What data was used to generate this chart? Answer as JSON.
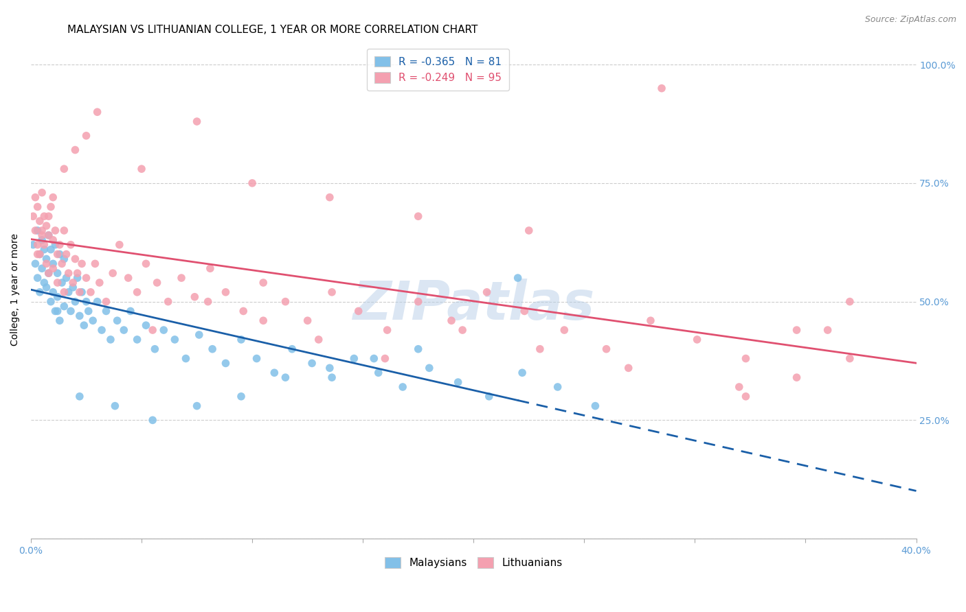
{
  "title": "MALAYSIAN VS LITHUANIAN COLLEGE, 1 YEAR OR MORE CORRELATION CHART",
  "source": "Source: ZipAtlas.com",
  "ylabel": "College, 1 year or more",
  "xlim": [
    0.0,
    0.4
  ],
  "ylim": [
    0.0,
    1.05
  ],
  "x_ticks": [
    0.0,
    0.05,
    0.1,
    0.15,
    0.2,
    0.25,
    0.3,
    0.35,
    0.4
  ],
  "x_tick_labels": [
    "0.0%",
    "",
    "",
    "",
    "",
    "",
    "",
    "",
    "40.0%"
  ],
  "y_ticks": [
    0.0,
    0.25,
    0.5,
    0.75,
    1.0
  ],
  "y_tick_labels": [
    "",
    "25.0%",
    "50.0%",
    "75.0%",
    "100.0%"
  ],
  "malaysian_R": -0.365,
  "malaysian_N": 81,
  "lithuanian_R": -0.249,
  "lithuanian_N": 95,
  "malaysian_color": "#82c0e8",
  "lithuanian_color": "#f4a0b0",
  "malaysian_line_color": "#1a5fa8",
  "lithuanian_line_color": "#e05070",
  "watermark": "ZIPatlas",
  "grid_color": "#cccccc",
  "tick_color": "#5b9bd5",
  "malaysian_x": [
    0.001,
    0.002,
    0.003,
    0.003,
    0.004,
    0.004,
    0.005,
    0.005,
    0.006,
    0.006,
    0.007,
    0.007,
    0.008,
    0.008,
    0.009,
    0.009,
    0.01,
    0.01,
    0.011,
    0.011,
    0.012,
    0.012,
    0.013,
    0.013,
    0.014,
    0.015,
    0.015,
    0.016,
    0.017,
    0.018,
    0.019,
    0.02,
    0.021,
    0.022,
    0.023,
    0.024,
    0.025,
    0.026,
    0.028,
    0.03,
    0.032,
    0.034,
    0.036,
    0.039,
    0.042,
    0.045,
    0.048,
    0.052,
    0.056,
    0.06,
    0.065,
    0.07,
    0.076,
    0.082,
    0.088,
    0.095,
    0.102,
    0.11,
    0.118,
    0.127,
    0.136,
    0.146,
    0.157,
    0.168,
    0.18,
    0.193,
    0.207,
    0.222,
    0.238,
    0.255,
    0.22,
    0.175,
    0.155,
    0.135,
    0.115,
    0.095,
    0.075,
    0.055,
    0.038,
    0.022,
    0.012
  ],
  "malaysian_y": [
    0.62,
    0.58,
    0.65,
    0.55,
    0.6,
    0.52,
    0.63,
    0.57,
    0.61,
    0.54,
    0.59,
    0.53,
    0.64,
    0.56,
    0.61,
    0.5,
    0.58,
    0.52,
    0.62,
    0.48,
    0.56,
    0.51,
    0.6,
    0.46,
    0.54,
    0.59,
    0.49,
    0.55,
    0.52,
    0.48,
    0.53,
    0.5,
    0.55,
    0.47,
    0.52,
    0.45,
    0.5,
    0.48,
    0.46,
    0.5,
    0.44,
    0.48,
    0.42,
    0.46,
    0.44,
    0.48,
    0.42,
    0.45,
    0.4,
    0.44,
    0.42,
    0.38,
    0.43,
    0.4,
    0.37,
    0.42,
    0.38,
    0.35,
    0.4,
    0.37,
    0.34,
    0.38,
    0.35,
    0.32,
    0.36,
    0.33,
    0.3,
    0.35,
    0.32,
    0.28,
    0.55,
    0.4,
    0.38,
    0.36,
    0.34,
    0.3,
    0.28,
    0.25,
    0.28,
    0.3,
    0.48
  ],
  "lithuanian_x": [
    0.001,
    0.002,
    0.002,
    0.003,
    0.003,
    0.004,
    0.004,
    0.005,
    0.005,
    0.006,
    0.006,
    0.007,
    0.007,
    0.008,
    0.008,
    0.009,
    0.01,
    0.01,
    0.011,
    0.012,
    0.012,
    0.013,
    0.014,
    0.015,
    0.015,
    0.016,
    0.017,
    0.018,
    0.019,
    0.02,
    0.021,
    0.022,
    0.023,
    0.025,
    0.027,
    0.029,
    0.031,
    0.034,
    0.037,
    0.04,
    0.044,
    0.048,
    0.052,
    0.057,
    0.062,
    0.068,
    0.074,
    0.081,
    0.088,
    0.096,
    0.105,
    0.115,
    0.125,
    0.136,
    0.148,
    0.161,
    0.175,
    0.19,
    0.206,
    0.223,
    0.241,
    0.26,
    0.28,
    0.301,
    0.323,
    0.346,
    0.37,
    0.37,
    0.346,
    0.323,
    0.055,
    0.08,
    0.105,
    0.13,
    0.16,
    0.195,
    0.23,
    0.27,
    0.32,
    0.36,
    0.003,
    0.005,
    0.008,
    0.01,
    0.015,
    0.02,
    0.025,
    0.03,
    0.05,
    0.075,
    0.1,
    0.135,
    0.175,
    0.225,
    0.285
  ],
  "lithuanian_y": [
    0.68,
    0.72,
    0.65,
    0.7,
    0.62,
    0.67,
    0.6,
    0.73,
    0.65,
    0.68,
    0.62,
    0.66,
    0.58,
    0.64,
    0.56,
    0.7,
    0.63,
    0.57,
    0.65,
    0.6,
    0.54,
    0.62,
    0.58,
    0.65,
    0.52,
    0.6,
    0.56,
    0.62,
    0.54,
    0.59,
    0.56,
    0.52,
    0.58,
    0.55,
    0.52,
    0.58,
    0.54,
    0.5,
    0.56,
    0.62,
    0.55,
    0.52,
    0.58,
    0.54,
    0.5,
    0.55,
    0.51,
    0.57,
    0.52,
    0.48,
    0.54,
    0.5,
    0.46,
    0.52,
    0.48,
    0.44,
    0.5,
    0.46,
    0.52,
    0.48,
    0.44,
    0.4,
    0.46,
    0.42,
    0.38,
    0.44,
    0.5,
    0.38,
    0.34,
    0.3,
    0.44,
    0.5,
    0.46,
    0.42,
    0.38,
    0.44,
    0.4,
    0.36,
    0.32,
    0.44,
    0.6,
    0.64,
    0.68,
    0.72,
    0.78,
    0.82,
    0.85,
    0.9,
    0.78,
    0.88,
    0.75,
    0.72,
    0.68,
    0.65,
    0.95
  ],
  "line_solid_end_m": 0.22,
  "line_solid_end_l": 0.4
}
